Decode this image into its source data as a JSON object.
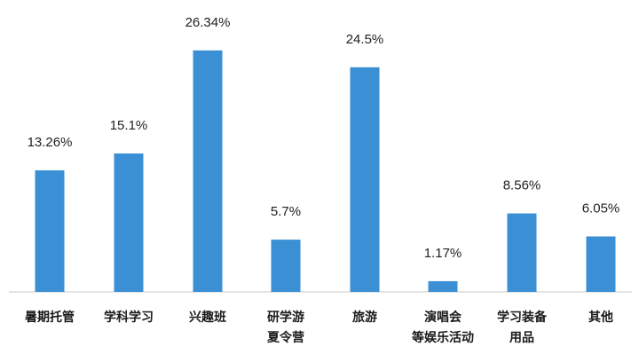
{
  "chart_data": {
    "type": "bar",
    "categories": [
      [
        "暑期托管"
      ],
      [
        "学科学习"
      ],
      [
        "兴趣班"
      ],
      [
        "研学游",
        "夏令营"
      ],
      [
        "旅游"
      ],
      [
        "演唱会",
        "等娱乐活动"
      ],
      [
        "学习装备",
        "用品"
      ],
      [
        "其他"
      ]
    ],
    "values": [
      13.26,
      15.1,
      26.34,
      5.7,
      24.5,
      1.17,
      8.56,
      6.05
    ],
    "value_labels": [
      "13.26%",
      "15.1%",
      "26.34%",
      "5.7%",
      "24.5%",
      "1.17%",
      "8.56%",
      "6.05%"
    ],
    "unit": "%",
    "ylim": [
      0,
      27
    ],
    "grid": false,
    "legend": "none",
    "bar_color": "#3b8fd4"
  }
}
